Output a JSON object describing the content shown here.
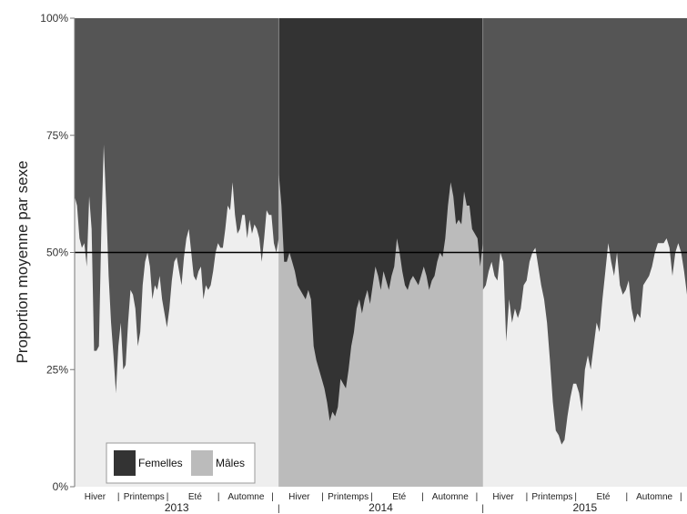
{
  "chart_data": {
    "type": "area",
    "ylabel": "Proportion moyenne par sexe",
    "yticks": [
      "0%",
      "25%",
      "50%",
      "75%",
      "100%"
    ],
    "ylim": [
      0,
      100
    ],
    "reference_line": 50,
    "season_labels": [
      "Hiver",
      "|",
      "Printemps",
      "|",
      "Eté",
      "|",
      "Automne",
      "|"
    ],
    "legend": {
      "placement": "bottom-left",
      "entries": [
        "Femelles",
        "Mâles"
      ]
    },
    "years": [
      {
        "label": "2013",
        "colors": {
          "femelles": "#555555",
          "males": "#eeeeee"
        },
        "males_pct": [
          62,
          60,
          53,
          51,
          52,
          47,
          62,
          55,
          29,
          29,
          30,
          55,
          73,
          60,
          45,
          35,
          28,
          20,
          30,
          35,
          25,
          26,
          35,
          42,
          41,
          38,
          30,
          33,
          43,
          48,
          50,
          47,
          40,
          43,
          42,
          45,
          40,
          37,
          34,
          38,
          44,
          48,
          49,
          46,
          43,
          49,
          53,
          55,
          50,
          45,
          44,
          46,
          47,
          40,
          43,
          42,
          43,
          46,
          50,
          52,
          51,
          51,
          55,
          60,
          59,
          65,
          58,
          54,
          55,
          58,
          58,
          53,
          57,
          54,
          56,
          55,
          53,
          48,
          53,
          59,
          58,
          58,
          52,
          50,
          53
        ]
      },
      {
        "label": "2014",
        "colors": {
          "femelles": "#333333",
          "males": "#bbbbbb"
        },
        "males_pct": [
          67,
          60,
          48,
          48,
          50,
          48,
          46,
          43,
          42,
          41,
          40,
          42,
          40,
          30,
          27,
          25,
          23,
          21,
          18,
          14,
          16,
          15,
          17,
          23,
          22,
          21,
          25,
          30,
          33,
          38,
          40,
          37,
          40,
          42,
          39,
          43,
          47,
          45,
          42,
          46,
          44,
          42,
          45,
          47,
          53,
          50,
          46,
          43,
          42,
          44,
          45,
          44,
          43,
          45,
          47,
          45,
          42,
          44,
          45,
          48,
          50,
          49,
          53,
          60,
          65,
          62,
          56,
          57,
          56,
          63,
          60,
          60,
          55,
          54,
          53,
          47,
          52
        ]
      },
      {
        "label": "2015",
        "colors": {
          "femelles": "#555555",
          "males": "#eeeeee"
        },
        "males_pct": [
          42,
          43,
          46,
          48,
          45,
          44,
          50,
          48,
          31,
          40,
          35,
          38,
          36,
          38,
          43,
          44,
          48,
          50,
          51,
          47,
          43,
          40,
          35,
          27,
          18,
          12,
          11,
          9,
          10,
          15,
          19,
          22,
          22,
          20,
          16,
          25,
          28,
          25,
          30,
          35,
          33,
          40,
          46,
          52,
          48,
          45,
          50,
          43,
          41,
          42,
          44,
          38,
          35,
          37,
          36,
          43,
          44,
          45,
          47,
          50,
          52,
          52,
          52,
          53,
          51,
          45,
          50,
          52,
          50,
          46,
          41
        ]
      }
    ]
  }
}
